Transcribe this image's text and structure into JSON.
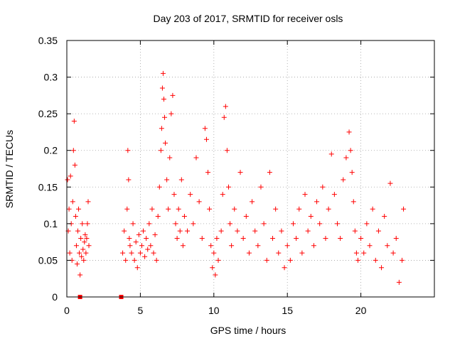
{
  "chart_data": {
    "type": "scatter",
    "title": "Day 203 of 2017, SRMTID for receiver osls",
    "xlabel": "GPS time / hours",
    "ylabel": "SRMTID / TECUs",
    "xlim": [
      0,
      25
    ],
    "ylim": [
      0,
      0.35
    ],
    "x_ticks": [
      {
        "value": 0,
        "label": "0"
      },
      {
        "value": 5,
        "label": "5"
      },
      {
        "value": 10,
        "label": "10"
      },
      {
        "value": 15,
        "label": "15"
      },
      {
        "value": 20,
        "label": "20"
      }
    ],
    "y_ticks": [
      {
        "value": 0,
        "label": "0"
      },
      {
        "value": 0.05,
        "label": "0.05"
      },
      {
        "value": 0.1,
        "label": "0.1"
      },
      {
        "value": 0.15,
        "label": "0.15"
      },
      {
        "value": 0.2,
        "label": "0.2"
      },
      {
        "value": 0.25,
        "label": "0.25"
      },
      {
        "value": 0.3,
        "label": "0.3"
      },
      {
        "value": 0.35,
        "label": "0.35"
      }
    ],
    "grid": true,
    "series": [
      {
        "name": "SRMTID",
        "marker": "plus",
        "color": "#ff0000",
        "points": [
          [
            0.05,
            0.16
          ],
          [
            0.1,
            0.09
          ],
          [
            0.15,
            0.12
          ],
          [
            0.2,
            0.06
          ],
          [
            0.25,
            0.165
          ],
          [
            0.3,
            0.1
          ],
          [
            0.35,
            0.05
          ],
          [
            0.4,
            0.13
          ],
          [
            0.45,
            0.2
          ],
          [
            0.5,
            0.24
          ],
          [
            0.55,
            0.18
          ],
          [
            0.6,
            0.11
          ],
          [
            0.65,
            0.07
          ],
          [
            0.7,
            0.045
          ],
          [
            0.75,
            0.09
          ],
          [
            0.8,
            0.12
          ],
          [
            0.85,
            0.06
          ],
          [
            0.9,
            0.03
          ],
          [
            0.95,
            0.08
          ],
          [
            1.0,
            0.055
          ],
          [
            1.05,
            0.1
          ],
          [
            1.1,
            0.065
          ],
          [
            1.15,
            0.05
          ],
          [
            1.2,
            0.075
          ],
          [
            1.25,
            0.085
          ],
          [
            1.3,
            0.06
          ],
          [
            1.35,
            0.08
          ],
          [
            1.4,
            0.1
          ],
          [
            1.45,
            0.13
          ],
          [
            1.5,
            0.07
          ],
          [
            3.8,
            0.06
          ],
          [
            3.9,
            0.09
          ],
          [
            4.0,
            0.05
          ],
          [
            4.1,
            0.12
          ],
          [
            4.15,
            0.2
          ],
          [
            4.2,
            0.16
          ],
          [
            4.25,
            0.08
          ],
          [
            4.3,
            0.07
          ],
          [
            4.4,
            0.06
          ],
          [
            4.5,
            0.1
          ],
          [
            4.6,
            0.05
          ],
          [
            4.7,
            0.075
          ],
          [
            4.8,
            0.04
          ],
          [
            4.9,
            0.085
          ],
          [
            5.0,
            0.06
          ],
          [
            5.1,
            0.07
          ],
          [
            5.2,
            0.09
          ],
          [
            5.3,
            0.055
          ],
          [
            5.4,
            0.08
          ],
          [
            5.5,
            0.065
          ],
          [
            5.6,
            0.1
          ],
          [
            5.7,
            0.07
          ],
          [
            5.8,
            0.12
          ],
          [
            5.9,
            0.06
          ],
          [
            6.0,
            0.085
          ],
          [
            6.1,
            0.05
          ],
          [
            6.2,
            0.11
          ],
          [
            6.3,
            0.15
          ],
          [
            6.4,
            0.2
          ],
          [
            6.45,
            0.23
          ],
          [
            6.5,
            0.285
          ],
          [
            6.55,
            0.305
          ],
          [
            6.6,
            0.27
          ],
          [
            6.65,
            0.245
          ],
          [
            6.7,
            0.21
          ],
          [
            6.8,
            0.16
          ],
          [
            6.9,
            0.12
          ],
          [
            7.0,
            0.19
          ],
          [
            7.1,
            0.25
          ],
          [
            7.2,
            0.275
          ],
          [
            7.3,
            0.14
          ],
          [
            7.4,
            0.1
          ],
          [
            7.5,
            0.08
          ],
          [
            7.6,
            0.12
          ],
          [
            7.7,
            0.09
          ],
          [
            7.8,
            0.16
          ],
          [
            7.9,
            0.07
          ],
          [
            8.0,
            0.11
          ],
          [
            8.2,
            0.09
          ],
          [
            8.4,
            0.14
          ],
          [
            8.6,
            0.1
          ],
          [
            8.8,
            0.19
          ],
          [
            9.0,
            0.13
          ],
          [
            9.2,
            0.08
          ],
          [
            9.4,
            0.23
          ],
          [
            9.5,
            0.215
          ],
          [
            9.6,
            0.17
          ],
          [
            9.7,
            0.12
          ],
          [
            9.8,
            0.07
          ],
          [
            9.9,
            0.04
          ],
          [
            10.0,
            0.06
          ],
          [
            10.1,
            0.03
          ],
          [
            10.2,
            0.08
          ],
          [
            10.3,
            0.05
          ],
          [
            10.5,
            0.09
          ],
          [
            10.6,
            0.14
          ],
          [
            10.7,
            0.245
          ],
          [
            10.8,
            0.26
          ],
          [
            10.9,
            0.2
          ],
          [
            11.0,
            0.15
          ],
          [
            11.1,
            0.1
          ],
          [
            11.2,
            0.07
          ],
          [
            11.4,
            0.12
          ],
          [
            11.6,
            0.09
          ],
          [
            11.8,
            0.17
          ],
          [
            12.0,
            0.08
          ],
          [
            12.2,
            0.11
          ],
          [
            12.4,
            0.06
          ],
          [
            12.6,
            0.13
          ],
          [
            12.8,
            0.09
          ],
          [
            13.0,
            0.07
          ],
          [
            13.2,
            0.15
          ],
          [
            13.4,
            0.1
          ],
          [
            13.6,
            0.05
          ],
          [
            13.8,
            0.17
          ],
          [
            14.0,
            0.08
          ],
          [
            14.2,
            0.12
          ],
          [
            14.4,
            0.06
          ],
          [
            14.6,
            0.09
          ],
          [
            14.8,
            0.04
          ],
          [
            15.0,
            0.07
          ],
          [
            15.2,
            0.05
          ],
          [
            15.4,
            0.1
          ],
          [
            15.6,
            0.08
          ],
          [
            15.8,
            0.12
          ],
          [
            16.0,
            0.06
          ],
          [
            16.2,
            0.14
          ],
          [
            16.4,
            0.09
          ],
          [
            16.6,
            0.11
          ],
          [
            16.8,
            0.07
          ],
          [
            17.0,
            0.13
          ],
          [
            17.2,
            0.1
          ],
          [
            17.4,
            0.15
          ],
          [
            17.6,
            0.08
          ],
          [
            17.8,
            0.12
          ],
          [
            18.0,
            0.195
          ],
          [
            18.2,
            0.14
          ],
          [
            18.4,
            0.1
          ],
          [
            18.6,
            0.08
          ],
          [
            18.8,
            0.16
          ],
          [
            19.0,
            0.19
          ],
          [
            19.2,
            0.225
          ],
          [
            19.3,
            0.2
          ],
          [
            19.4,
            0.17
          ],
          [
            19.5,
            0.13
          ],
          [
            19.6,
            0.09
          ],
          [
            19.7,
            0.06
          ],
          [
            19.8,
            0.05
          ],
          [
            20.0,
            0.08
          ],
          [
            20.2,
            0.06
          ],
          [
            20.4,
            0.1
          ],
          [
            20.6,
            0.07
          ],
          [
            20.8,
            0.12
          ],
          [
            21.0,
            0.05
          ],
          [
            21.2,
            0.09
          ],
          [
            21.4,
            0.04
          ],
          [
            21.6,
            0.11
          ],
          [
            21.8,
            0.07
          ],
          [
            22.0,
            0.155
          ],
          [
            22.2,
            0.06
          ],
          [
            22.4,
            0.08
          ],
          [
            22.6,
            0.02
          ],
          [
            22.8,
            0.05
          ],
          [
            22.9,
            0.12
          ]
        ]
      },
      {
        "name": "baseline markers",
        "marker": "square",
        "color": "#ff0000",
        "points": [
          [
            0.9,
            0
          ],
          [
            3.7,
            0
          ]
        ]
      }
    ]
  }
}
